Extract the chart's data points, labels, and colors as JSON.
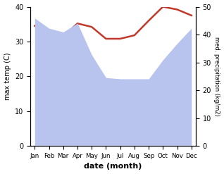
{
  "months": [
    "Jan",
    "Feb",
    "Mar",
    "Apr",
    "May",
    "Jun",
    "Jul",
    "Aug",
    "Sep",
    "Oct",
    "Nov",
    "Dec"
  ],
  "x": [
    0,
    1,
    2,
    3,
    4,
    5,
    6,
    7,
    8,
    9,
    10,
    11
  ],
  "temp": [
    34.5,
    32.2,
    31.5,
    35.2,
    34.2,
    30.8,
    30.8,
    31.8,
    36.0,
    40.0,
    39.2,
    37.5
  ],
  "precip_mm": [
    505,
    465,
    450,
    485,
    360,
    270,
    265,
    265,
    265,
    340,
    405,
    465
  ],
  "temp_color": "#c0392b",
  "precip_fill_color": "#b8c4ee",
  "background_color": "#ffffff",
  "ylabel_left": "max temp (C)",
  "ylabel_right": "med. precipitation (kg/m2)",
  "xlabel": "date (month)",
  "ylim_left": [
    0,
    40
  ],
  "ylim_right": [
    0,
    550
  ],
  "yticks_left": [
    0,
    10,
    20,
    30,
    40
  ],
  "yticks_right": [
    0,
    10,
    20,
    30,
    40,
    50
  ]
}
